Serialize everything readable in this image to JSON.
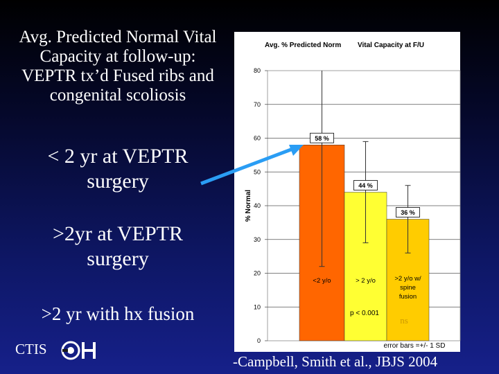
{
  "slide": {
    "title": "Avg. Predicted Normal Vital Capacity at follow-up: VEPTR tx’d Fused ribs and congenital scoliosis",
    "group_labels": [
      "< 2 yr at VEPTR surgery",
      ">2yr at VEPTR surgery",
      ">2 yr with hx fusion"
    ],
    "logo_text": "CTIS",
    "citation": "-Campbell, Smith et al., JBJS 2004"
  },
  "colors": {
    "background_top": "#000000",
    "background_bottom": "#16208a",
    "arrow": "#2a9df4",
    "bar_1": "#ff6600",
    "bar_2": "#ffff33",
    "bar_3": "#ffcc00",
    "ns_text": "#cc9900"
  },
  "chart_data": {
    "type": "bar",
    "title_left": "Avg. % Predicted Norm",
    "title_right": "Vital Capacity at F/U",
    "ylabel": "% Normal",
    "ylim": [
      0,
      80
    ],
    "yticks": [
      0,
      10,
      20,
      30,
      40,
      50,
      60,
      70,
      80
    ],
    "grid": true,
    "categories": [
      "<2 y/o",
      "> 2 y/o",
      ">2 y/o w/ spine fusion"
    ],
    "values": [
      58,
      44,
      36
    ],
    "value_labels": [
      "58 %",
      "44 %",
      "36 %"
    ],
    "error_sd": [
      36,
      15,
      10
    ],
    "annotations": [
      "p < 0.001",
      "ns"
    ],
    "footnote": "error bars =+/- 1 SD"
  }
}
